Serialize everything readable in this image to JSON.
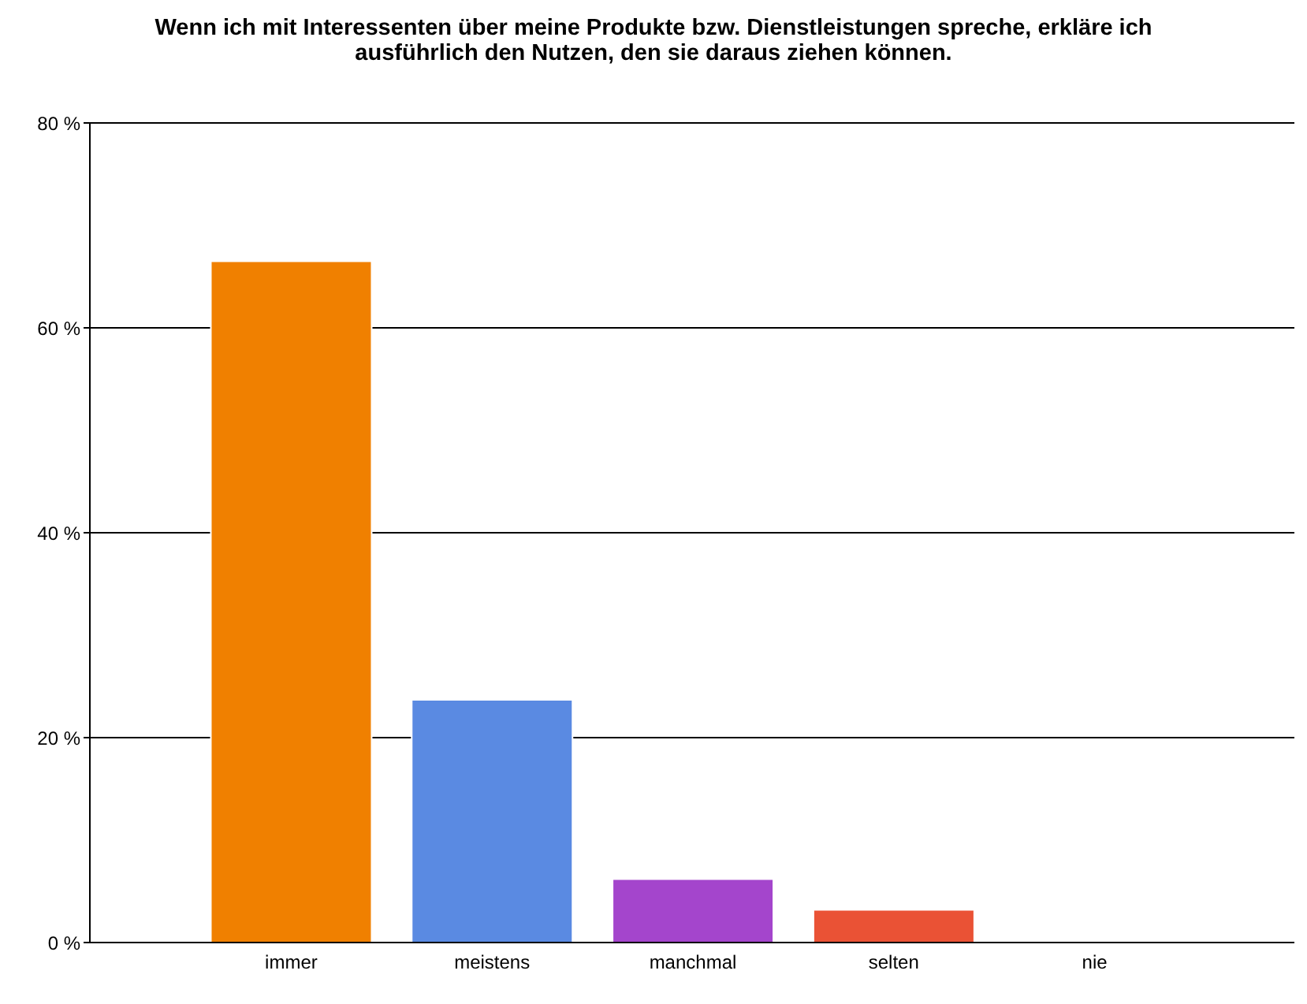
{
  "chart_data": {
    "type": "bar",
    "title": "Wenn ich mit Interessenten über meine Produkte bzw. Dienstleistungen spreche, erkläre ich ausführlich den Nutzen, den sie daraus ziehen können.",
    "categories": [
      "immer",
      "meistens",
      "manchmal",
      "selten",
      "nie"
    ],
    "values": [
      66.5,
      23.7,
      6.2,
      3.2,
      0
    ],
    "colors": [
      "#f08000",
      "#5a8ae2",
      "#a445cc",
      "#ea5235",
      "#888888"
    ],
    "ylim": [
      0,
      80
    ],
    "yticks": [
      {
        "value": 0,
        "label": "0 %"
      },
      {
        "value": 20,
        "label": "20 %"
      },
      {
        "value": 40,
        "label": "40 %"
      },
      {
        "value": 60,
        "label": "60 %"
      },
      {
        "value": 80,
        "label": "80 %"
      }
    ],
    "grid": "y"
  }
}
